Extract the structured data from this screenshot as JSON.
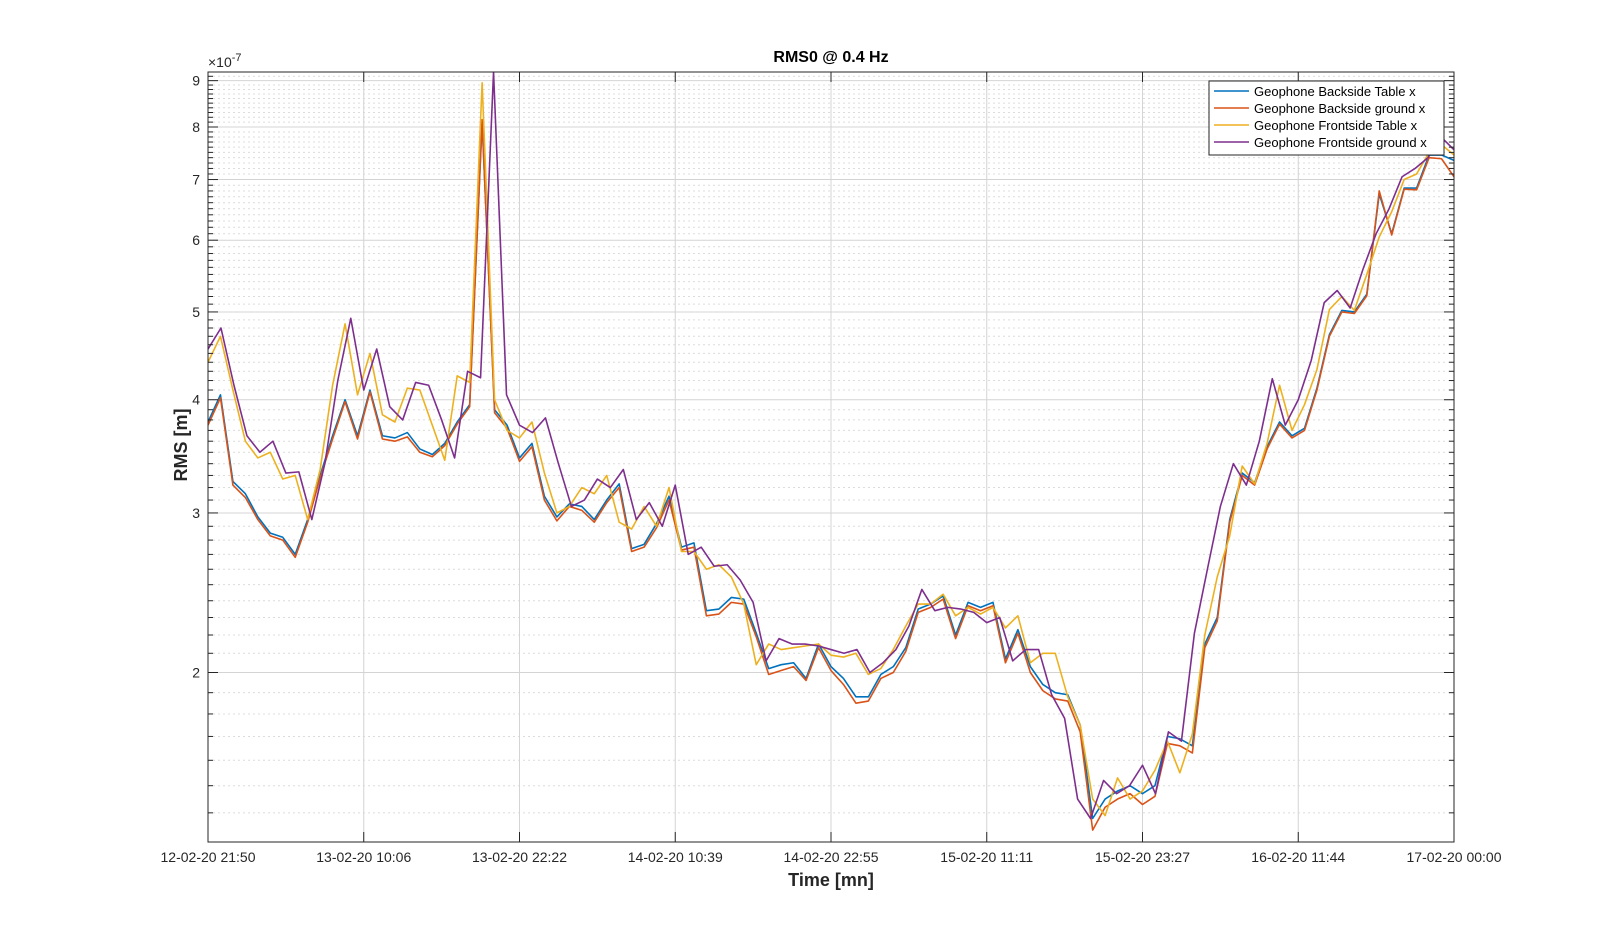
{
  "chart_data": {
    "type": "line",
    "title": "RMS0 @ 0.4 Hz",
    "xlabel": "Time [mn]",
    "ylabel": "RMS [m]",
    "y_exponent_label": "×10",
    "y_exponent_power": "-7",
    "y_scale": "log",
    "ylim": [
      1.3,
      9.2
    ],
    "y_tick_values": [
      2,
      3,
      4,
      5,
      6,
      7,
      8,
      9
    ],
    "y_tick_labels": [
      "2",
      "3",
      "4",
      "5",
      "6",
      "7",
      "8",
      "9"
    ],
    "x_tick_labels": [
      "12-02-20 21:50",
      "13-02-20 10:06",
      "13-02-20 22:22",
      "14-02-20 10:39",
      "14-02-20 22:55",
      "15-02-20 11:11",
      "15-02-20 23:27",
      "16-02-20 11:44",
      "17-02-20 00:00"
    ],
    "xlim": [
      0,
      96
    ],
    "grid": true,
    "legend_position": "top-right",
    "series": [
      {
        "name": "Geophone Backside Table x",
        "color": "#0072BD",
        "values": [
          3.78,
          4.05,
          3.25,
          3.15,
          2.97,
          2.85,
          2.82,
          2.7,
          2.95,
          3.3,
          3.65,
          4.0,
          3.65,
          4.1,
          3.65,
          3.63,
          3.68,
          3.53,
          3.48,
          3.58,
          3.78,
          3.95,
          8.1,
          3.9,
          3.75,
          3.45,
          3.58,
          3.13,
          2.97,
          3.07,
          3.05,
          2.95,
          3.1,
          3.23,
          2.74,
          2.77,
          2.92,
          3.13,
          2.75,
          2.78,
          2.34,
          2.35,
          2.42,
          2.41,
          2.21,
          2.02,
          2.04,
          2.05,
          1.97,
          2.15,
          2.03,
          1.97,
          1.88,
          1.88,
          1.99,
          2.03,
          2.13,
          2.35,
          2.38,
          2.43,
          2.2,
          2.39,
          2.36,
          2.39,
          2.07,
          2.23,
          2.03,
          1.94,
          1.9,
          1.89,
          1.75,
          1.38,
          1.45,
          1.48,
          1.5,
          1.47,
          1.5,
          1.7,
          1.69,
          1.66,
          2.15,
          2.3,
          2.95,
          3.32,
          3.24,
          3.55,
          3.78,
          3.65,
          3.72,
          4.12,
          4.72,
          5.02,
          5.0,
          5.23,
          6.75,
          6.1,
          6.85,
          6.85,
          7.45,
          7.45,
          7.35
        ]
      },
      {
        "name": "Geophone Backside ground x",
        "color": "#D95319",
        "values": [
          3.75,
          4.02,
          3.22,
          3.12,
          2.95,
          2.83,
          2.8,
          2.68,
          2.93,
          3.28,
          3.62,
          3.98,
          3.62,
          4.08,
          3.62,
          3.6,
          3.64,
          3.5,
          3.46,
          3.56,
          3.76,
          3.93,
          8.15,
          3.87,
          3.72,
          3.42,
          3.55,
          3.1,
          2.94,
          3.05,
          3.02,
          2.93,
          3.08,
          3.2,
          2.72,
          2.75,
          2.89,
          3.1,
          2.73,
          2.75,
          2.31,
          2.32,
          2.39,
          2.38,
          2.19,
          1.99,
          2.01,
          2.03,
          1.96,
          2.13,
          2.01,
          1.94,
          1.85,
          1.86,
          1.97,
          2.0,
          2.11,
          2.33,
          2.36,
          2.41,
          2.18,
          2.37,
          2.34,
          2.37,
          2.05,
          2.21,
          2.0,
          1.91,
          1.87,
          1.86,
          1.72,
          1.34,
          1.42,
          1.45,
          1.47,
          1.43,
          1.46,
          1.67,
          1.66,
          1.63,
          2.13,
          2.28,
          2.93,
          3.3,
          3.22,
          3.53,
          3.76,
          3.63,
          3.7,
          4.1,
          4.7,
          5.0,
          4.98,
          5.21,
          6.8,
          6.08,
          6.83,
          6.82,
          7.4,
          7.38,
          7.05
        ]
      },
      {
        "name": "Geophone Frontside Table x",
        "color": "#EDB120",
        "values": [
          4.4,
          4.7,
          4.1,
          3.6,
          3.45,
          3.5,
          3.27,
          3.3,
          2.95,
          3.35,
          4.15,
          4.85,
          4.05,
          4.5,
          3.85,
          3.78,
          4.12,
          4.1,
          3.75,
          3.43,
          4.25,
          4.18,
          8.95,
          4.0,
          3.7,
          3.63,
          3.78,
          3.32,
          3.0,
          3.05,
          3.2,
          3.15,
          3.3,
          2.93,
          2.88,
          3.05,
          2.9,
          3.2,
          2.72,
          2.72,
          2.6,
          2.63,
          2.55,
          2.38,
          2.04,
          2.15,
          2.12,
          2.13,
          2.14,
          2.15,
          2.09,
          2.08,
          2.1,
          1.99,
          2.02,
          2.12,
          2.25,
          2.38,
          2.38,
          2.44,
          2.31,
          2.36,
          2.32,
          2.36,
          2.24,
          2.31,
          2.05,
          2.1,
          2.1,
          1.88,
          1.75,
          1.45,
          1.39,
          1.53,
          1.45,
          1.48,
          1.56,
          1.68,
          1.55,
          1.71,
          2.2,
          2.55,
          2.83,
          3.38,
          3.23,
          3.58,
          4.15,
          3.7,
          3.95,
          4.32,
          5.03,
          5.2,
          5.02,
          5.5,
          6.05,
          6.45,
          7.0,
          7.1,
          7.5,
          7.65,
          7.45
        ]
      },
      {
        "name": "Geophone Frontside ground x",
        "color": "#7E2F8E",
        "values": [
          4.55,
          4.8,
          4.15,
          3.65,
          3.5,
          3.6,
          3.32,
          3.33,
          2.95,
          3.4,
          4.2,
          4.92,
          4.1,
          4.55,
          3.93,
          3.8,
          4.18,
          4.15,
          3.8,
          3.45,
          4.3,
          4.23,
          9.2,
          4.05,
          3.75,
          3.68,
          3.82,
          3.4,
          3.05,
          3.1,
          3.27,
          3.2,
          3.35,
          2.95,
          3.08,
          2.9,
          3.22,
          2.7,
          2.75,
          2.62,
          2.63,
          2.53,
          2.39,
          2.06,
          2.18,
          2.15,
          2.15,
          2.14,
          2.12,
          2.1,
          2.12,
          2.0,
          2.05,
          2.12,
          2.25,
          2.47,
          2.34,
          2.36,
          2.35,
          2.33,
          2.27,
          2.3,
          2.06,
          2.12,
          2.12,
          1.89,
          1.78,
          1.45,
          1.38,
          1.52,
          1.47,
          1.5,
          1.58,
          1.47,
          1.72,
          1.68,
          2.21,
          2.6,
          3.05,
          3.4,
          3.22,
          3.6,
          4.22,
          3.75,
          4.0,
          4.42,
          5.12,
          5.28,
          5.05,
          5.58,
          6.1,
          6.5,
          7.05,
          7.2,
          7.4,
          7.8,
          7.55
        ]
      }
    ]
  }
}
